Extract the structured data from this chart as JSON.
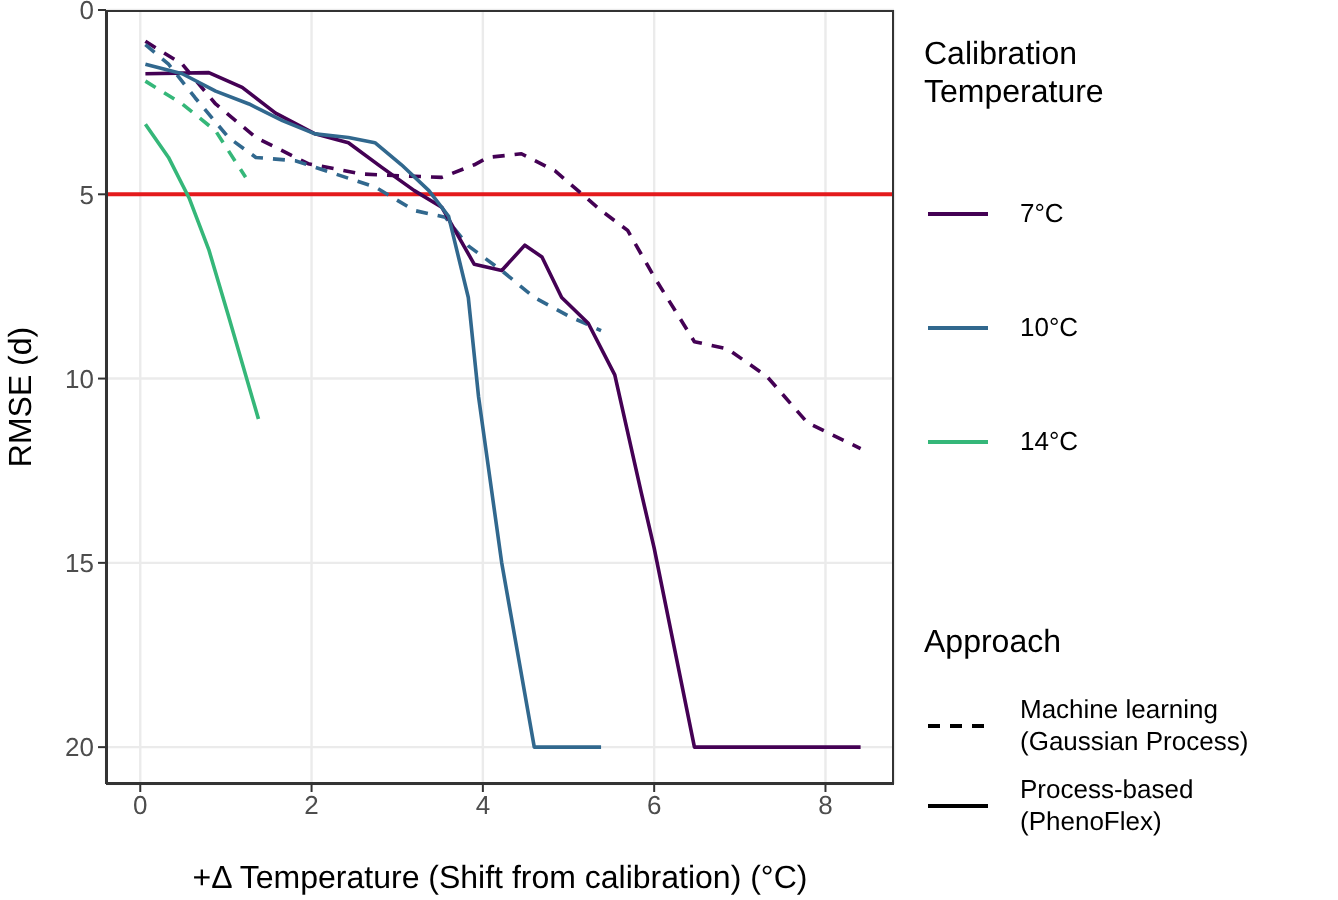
{
  "chart_data": {
    "type": "line",
    "xlabel": "+Δ Temperature (Shift from calibration) (°C)",
    "ylabel": "RMSE (d)",
    "legend_title": [
      "Calibration Temperature",
      "Approach"
    ],
    "annotations": [
      "Machine learning\n(Gaussian Process)",
      "Process-based\n(PhenoFlex)"
    ],
    "xlim": [
      -0.4,
      8.8
    ],
    "xticks": [
      0,
      2,
      4,
      6,
      8
    ],
    "ylim": [
      21,
      0
    ],
    "yticks": [
      0,
      5,
      10,
      15,
      20
    ],
    "grid": true,
    "legend": "right",
    "marker": "none",
    "ref_lines": [
      {
        "axis": "y",
        "value": 5,
        "color": "#e41a1c",
        "line_style": "solid"
      }
    ],
    "series": [
      {
        "color": "#440154",
        "line_style": "dashed",
        "x": [
          0.06,
          0.49,
          0.88,
          1.35,
          1.96,
          2.59,
          3.05,
          3.52,
          3.9,
          4.06,
          4.45,
          4.84,
          5.38,
          5.69,
          6.0,
          6.47,
          6.86,
          7.32,
          7.79,
          8.41
        ],
        "values": [
          0.85,
          1.47,
          2.55,
          3.46,
          4.17,
          4.45,
          4.5,
          4.54,
          4.2,
          4.0,
          3.9,
          4.36,
          5.44,
          5.98,
          7.24,
          9.0,
          9.2,
          9.95,
          11.2,
          11.9
        ]
      },
      {
        "color": "#31688e",
        "line_style": "dashed",
        "x": [
          0.06,
          0.33,
          0.64,
          1.03,
          1.35,
          1.81,
          2.28,
          2.74,
          3.2,
          3.56,
          3.83,
          4.22,
          4.6,
          5.0,
          5.38
        ],
        "values": [
          0.94,
          1.47,
          2.38,
          3.46,
          4.0,
          4.09,
          4.45,
          4.8,
          5.44,
          5.62,
          6.4,
          7.07,
          7.8,
          8.3,
          8.7
        ]
      },
      {
        "color": "#35b779",
        "line_style": "dashed",
        "x": [
          0.06,
          0.49,
          0.88,
          1.23
        ],
        "values": [
          1.93,
          2.55,
          3.28,
          4.54
        ]
      },
      {
        "name": "7°C",
        "color": "#440154",
        "line_style": "solid",
        "x": [
          0.06,
          0.8,
          1.19,
          1.58,
          2.04,
          2.43,
          2.82,
          3.2,
          3.52,
          3.9,
          4.22,
          4.49,
          4.69,
          4.92,
          5.23,
          5.54,
          5.85,
          6.0,
          6.47,
          8.41
        ],
        "values": [
          1.73,
          1.7,
          2.1,
          2.8,
          3.36,
          3.6,
          4.27,
          4.9,
          5.35,
          6.9,
          7.07,
          6.38,
          6.7,
          7.8,
          8.5,
          9.9,
          13.1,
          14.6,
          20,
          20
        ]
      },
      {
        "name": "10°C",
        "color": "#31688e",
        "line_style": "solid",
        "x": [
          0.06,
          0.49,
          0.88,
          1.27,
          1.66,
          2.04,
          2.43,
          2.74,
          3.05,
          3.37,
          3.6,
          3.83,
          3.95,
          4.22,
          4.6,
          5.38
        ],
        "values": [
          1.47,
          1.73,
          2.2,
          2.55,
          3.0,
          3.36,
          3.46,
          3.6,
          4.2,
          4.9,
          5.6,
          7.8,
          10.5,
          15.0,
          20,
          20
        ]
      },
      {
        "name": "14°C",
        "color": "#35b779",
        "line_style": "solid",
        "x": [
          0.06,
          0.33,
          0.57,
          0.8,
          1.03,
          1.38
        ],
        "values": [
          3.1,
          4.0,
          5.1,
          6.5,
          8.3,
          11.1
        ]
      }
    ]
  }
}
